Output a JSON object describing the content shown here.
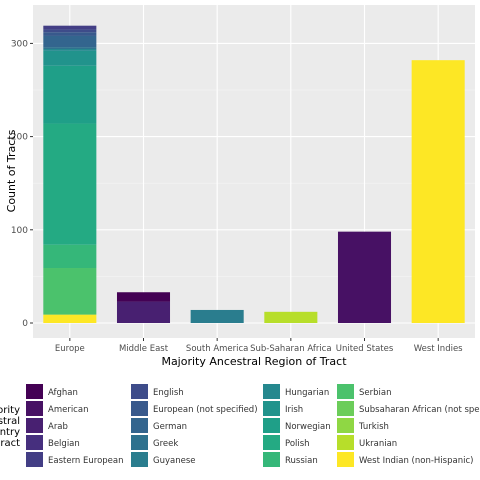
{
  "chart_data": {
    "type": "bar",
    "stacked": true,
    "xlabel": "Majority Ancestral Region of Tract",
    "ylabel": "Count of Tracts",
    "ylim": [
      0,
      330
    ],
    "yticks": [
      0,
      100,
      200,
      300
    ],
    "grid": true,
    "legend_position": "bottom",
    "legend_title_lines": [
      "ority",
      "stral",
      "ntry",
      "ract"
    ],
    "categories": [
      "Europe",
      "Middle East",
      "South America",
      "Sub-Saharan Africa",
      "United States",
      "West Indies"
    ],
    "series": [
      {
        "name": "Afghan",
        "color": "#440154",
        "values": [
          0,
          10,
          0,
          0,
          0,
          0
        ]
      },
      {
        "name": "American",
        "color": "#471164",
        "values": [
          0,
          0,
          0,
          0,
          98,
          0
        ]
      },
      {
        "name": "Arab",
        "color": "#482071",
        "values": [
          0,
          23,
          0,
          0,
          0,
          0
        ]
      },
      {
        "name": "Belgian",
        "color": "#462F7E",
        "values": [
          0,
          0,
          0,
          0,
          0,
          0
        ]
      },
      {
        "name": "Eastern European",
        "color": "#433E85",
        "values": [
          4,
          0,
          0,
          0,
          0,
          0
        ]
      },
      {
        "name": "English",
        "color": "#3E4C8A",
        "values": [
          3,
          0,
          0,
          0,
          0,
          0
        ]
      },
      {
        "name": "European (not specified)",
        "color": "#38598C",
        "values": [
          4,
          0,
          0,
          0,
          0,
          0
        ]
      },
      {
        "name": "German",
        "color": "#33658E",
        "values": [
          12,
          0,
          0,
          0,
          0,
          0
        ]
      },
      {
        "name": "Greek",
        "color": "#2E718E",
        "values": [
          2,
          0,
          0,
          0,
          0,
          0
        ]
      },
      {
        "name": "Guyanese",
        "color": "#2A7D8E",
        "values": [
          0,
          0,
          14,
          0,
          0,
          0
        ]
      },
      {
        "name": "Hungarian",
        "color": "#25888E",
        "values": [
          2,
          0,
          0,
          0,
          0,
          0
        ]
      },
      {
        "name": "Irish",
        "color": "#21938C",
        "values": [
          16,
          0,
          0,
          0,
          0,
          0
        ]
      },
      {
        "name": "Norwegian",
        "color": "#1F9F88",
        "values": [
          62,
          0,
          0,
          0,
          0,
          0
        ]
      },
      {
        "name": "Polish",
        "color": "#24AA83",
        "values": [
          130,
          0,
          0,
          0,
          0,
          0
        ]
      },
      {
        "name": "Russian",
        "color": "#35B779",
        "values": [
          25,
          0,
          0,
          0,
          0,
          0
        ]
      },
      {
        "name": "Serbian",
        "color": "#4BC26C",
        "values": [
          50,
          0,
          0,
          0,
          0,
          0
        ]
      },
      {
        "name": "Subsaharan African (not specified)",
        "color": "#6CCD5A",
        "values": [
          0,
          0,
          0,
          0,
          0,
          0
        ]
      },
      {
        "name": "Turkish",
        "color": "#8FD744",
        "values": [
          0,
          0,
          0,
          0,
          0,
          0
        ]
      },
      {
        "name": "Ukranian",
        "color": "#B7DE2A",
        "values": [
          0,
          0,
          0,
          12,
          0,
          0
        ]
      },
      {
        "name": "West Indian (non-Hispanic)",
        "color": "#FDE725",
        "values": [
          9,
          0,
          0,
          0,
          0,
          282
        ]
      }
    ],
    "category_labels": [
      "Europe",
      "Middle East",
      "South America",
      "Sub-Saharan Africa",
      "United States",
      "West Indies"
    ],
    "legend_items": [
      "Afghan",
      "American",
      "Arab",
      "Belgian",
      "Eastern European",
      "English",
      "European (not specified)",
      "German",
      "Greek",
      "Guyanese",
      "Hungarian",
      "Irish",
      "Norwegian",
      "Polish",
      "Russian",
      "Serbian",
      "Subsaharan African (not specified)",
      "Turkish",
      "Ukranian",
      "West Indian (non-Hispanic)"
    ]
  }
}
